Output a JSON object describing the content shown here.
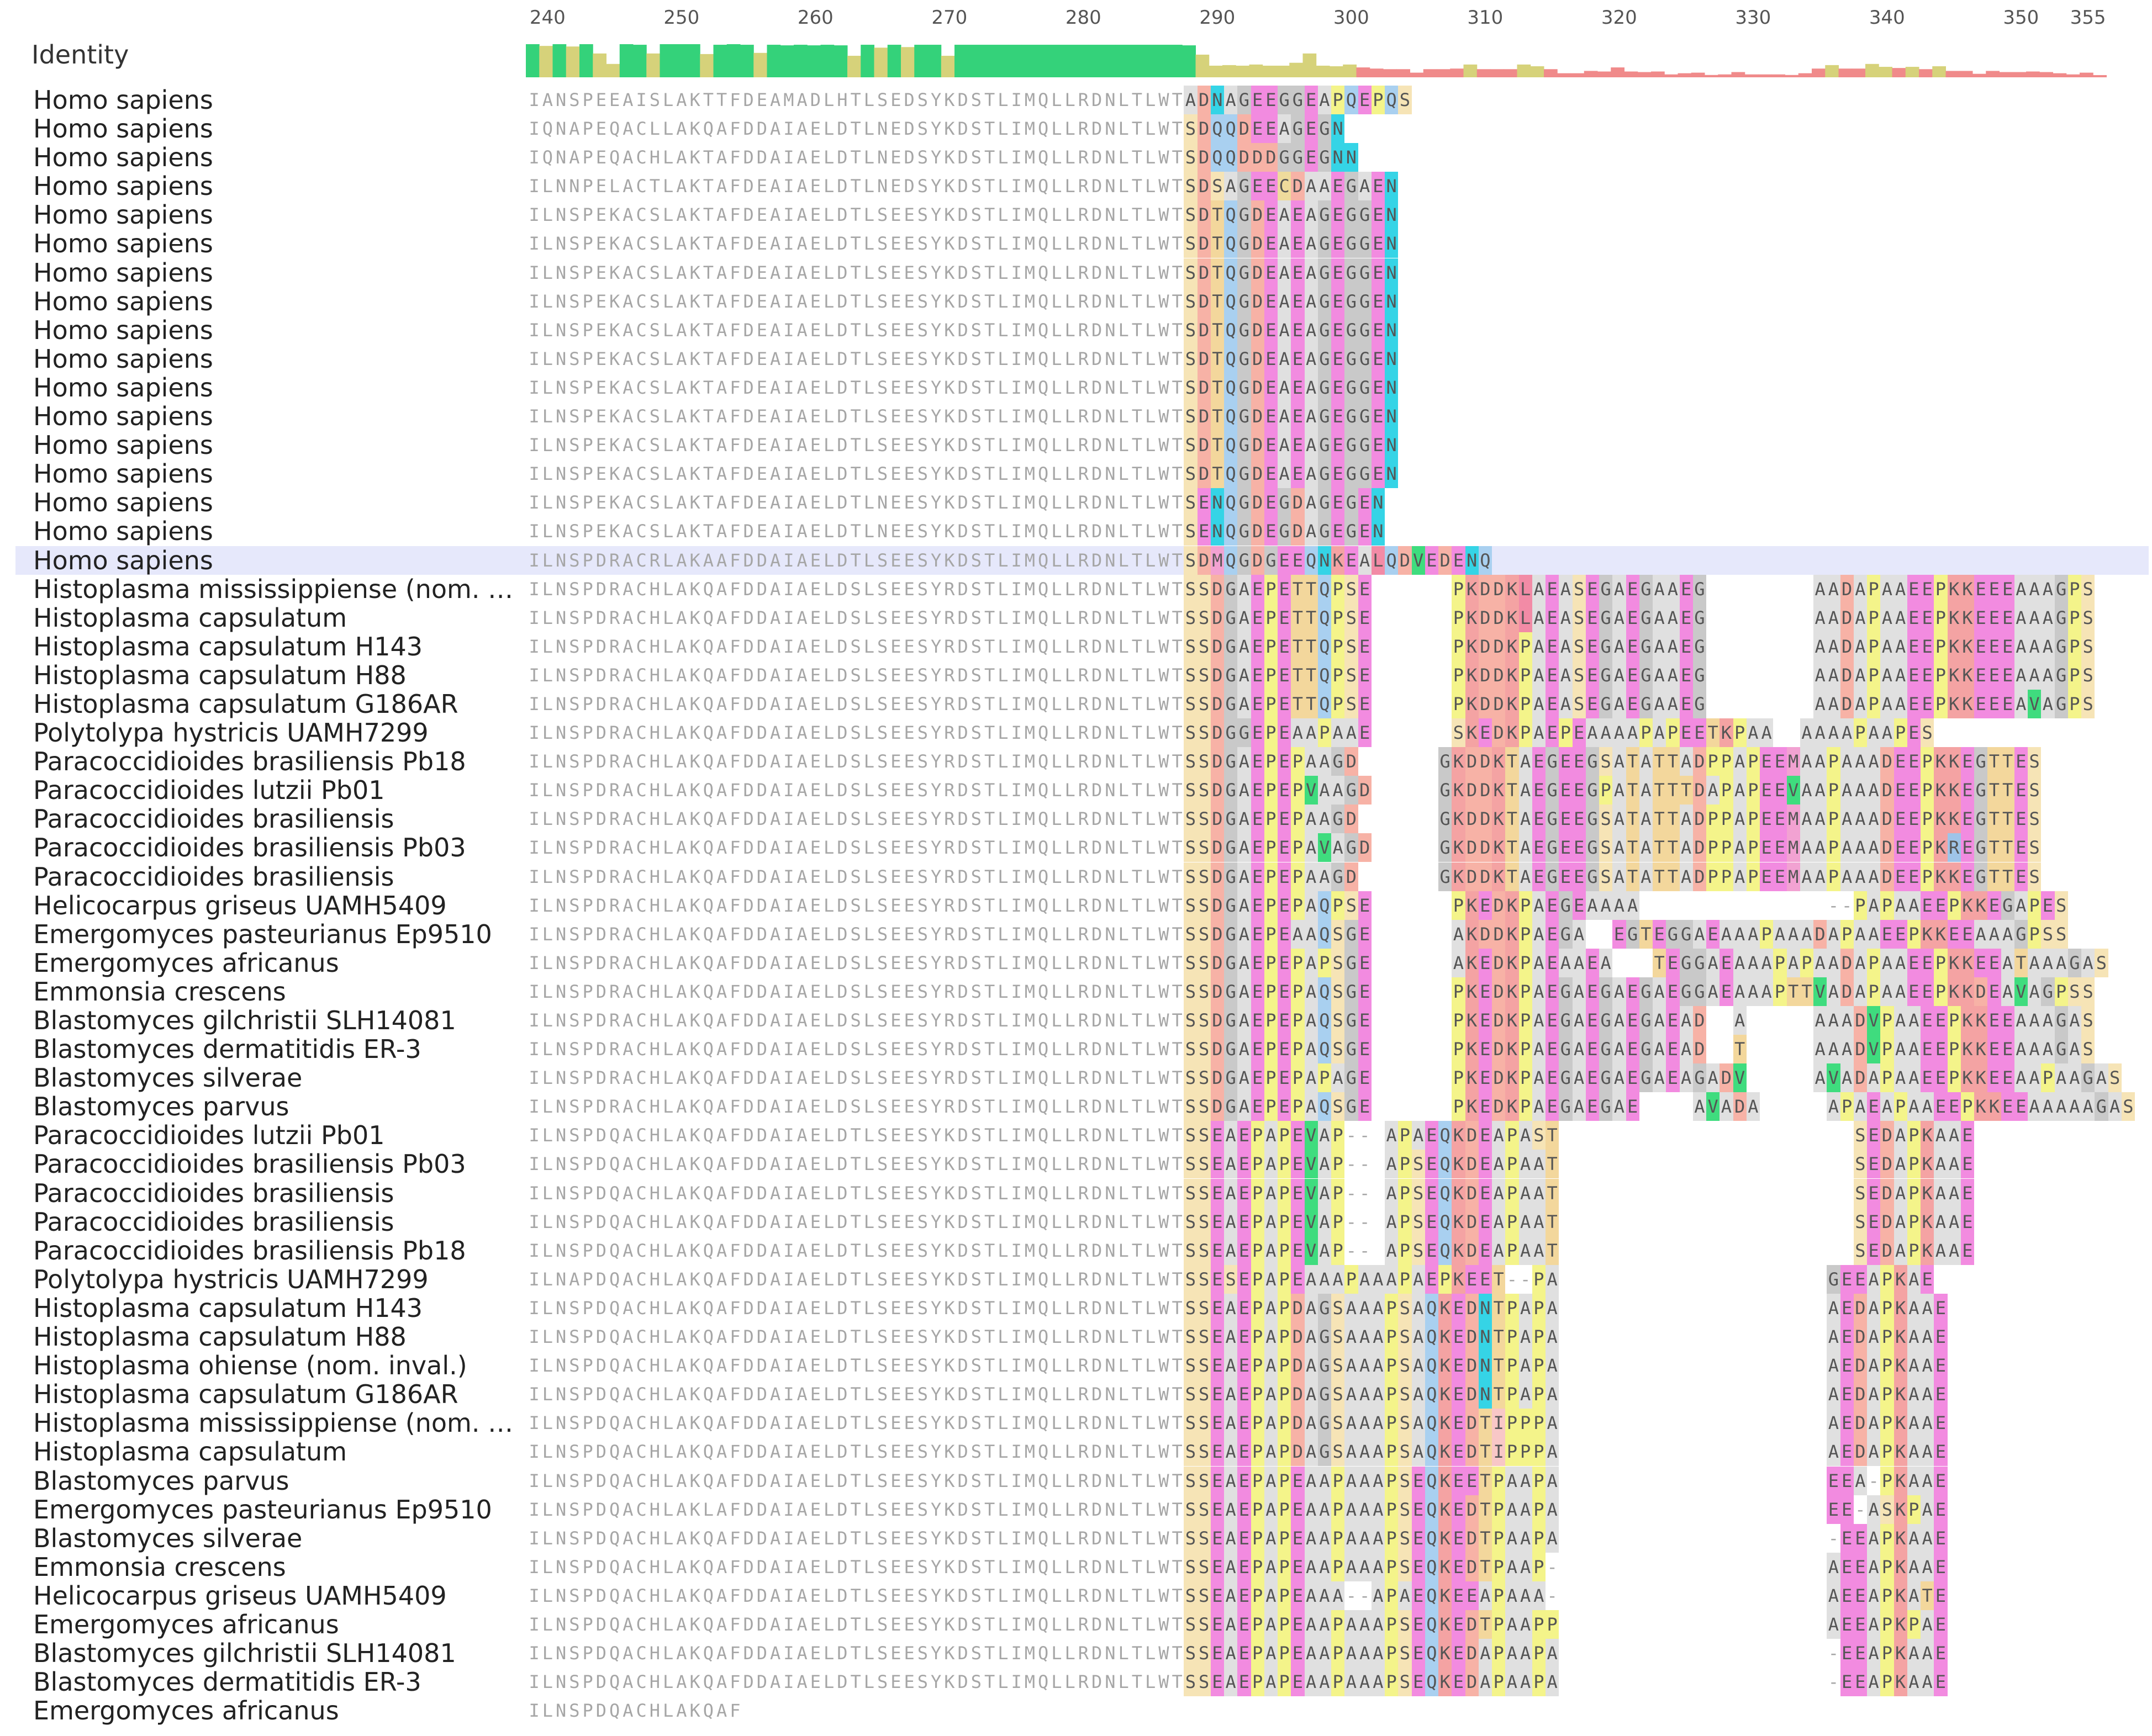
{
  "ruler": {
    "ticks": [
      "240",
      "250",
      "260",
      "270",
      "280",
      "290",
      "300",
      "310",
      "320",
      "330",
      "340",
      "350",
      "355"
    ]
  },
  "identity": {
    "label": "Identity",
    "colors": {
      "high": "#34d27a",
      "mid": "#d6d27a",
      "low": "#f08a8a"
    }
  },
  "selected_row_index": 16,
  "sequences": [
    {
      "name": "Homo sapiens",
      "seq": "IANSPEEAISLAKTTFDEAMADLHTLSEDSYKDSTLIMQLLRDNLTLWTADNAGEEGGEAPQEPQS"
    },
    {
      "name": "Homo sapiens",
      "seq": "IQNAPEQACLLAKQAFDDAIAELDTLNEDSYKDSTLIMQLLRDNLTLWTSDQQDEEAGEGN"
    },
    {
      "name": "Homo sapiens",
      "seq": "IQNAPEQACHLAKTAFDDAIAELDTLNEDSYKDSTLIMQLLRDNLTLWTSDQQDDDGGEGNN"
    },
    {
      "name": "Homo sapiens",
      "seq": "ILNNPELACTLAKTAFDEAIAELDTLNEDSYKDSTLIMQLLRDNLTLWTSDSAGEECDAAEGAEN"
    },
    {
      "name": "Homo sapiens",
      "seq": "ILNSPEKACSLAKTAFDEAIAELDTLSEESYKDSTLIMQLLRDNLTLWTSDTQGDEAEAGEGGEN"
    },
    {
      "name": "Homo sapiens",
      "seq": "ILNSPEKACSLAKTAFDEAIAELDTLSEESYKDSTLIMQLLRDNLTLWTSDTQGDEAEAGEGGEN"
    },
    {
      "name": "Homo sapiens",
      "seq": "ILNSPEKACSLAKTAFDEAIAELDTLSEESYKDSTLIMQLLRDNLTLWTSDTQGDEAEAGEGGEN"
    },
    {
      "name": "Homo sapiens",
      "seq": "ILNSPEKACSLAKTAFDEAIAELDTLSEESYKDSTLIMQLLRDNLTLWTSDTQGDEAEAGEGGEN"
    },
    {
      "name": "Homo sapiens",
      "seq": "ILNSPEKACSLAKTAFDEAIAELDTLSEESYKDSTLIMQLLRDNLTLWTSDTQGDEAEAGEGGEN"
    },
    {
      "name": "Homo sapiens",
      "seq": "ILNSPEKACSLAKTAFDEAIAELDTLSEESYKDSTLIMQLLRDNLTLWTSDTQGDEAEAGEGGEN"
    },
    {
      "name": "Homo sapiens",
      "seq": "ILNSPEKACSLAKTAFDEAIAELDTLSEESYKDSTLIMQLLRDNLTLWTSDTQGDEAEAGEGGEN"
    },
    {
      "name": "Homo sapiens",
      "seq": "ILNSPEKACSLAKTAFDEAIAELDTLSEESYKDSTLIMQLLRDNLTLWTSDTQGDEAEAGEGGEN"
    },
    {
      "name": "Homo sapiens",
      "seq": "ILNSPEKACSLAKTAFDEAIAELDTLSEESYKDSTLIMQLLRDNLTLWTSDTQGDEAEAGEGGEN"
    },
    {
      "name": "Homo sapiens",
      "seq": "ILNSPEKACSLAKTAFDEAIAELDTLSEESYKDSTLIMQLLRDNLTLWTSDTQGDEAEAGEGGEN"
    },
    {
      "name": "Homo sapiens",
      "seq": "ILNSPEKACSLAKTAFDEAIAELDTLNEESYKDSTLIMQLLRDNLTLWTSENQGDEGDAGEGEN"
    },
    {
      "name": "Homo sapiens",
      "seq": "ILNSPEKACSLAKTAFDEAIAELDTLNEESYKDSTLIMQLLRDNLTLWTSENQGDEGDAGEGEN"
    },
    {
      "name": "Homo sapiens",
      "seq": "ILNSPDRACRLAKAAFDDAIAELDTLSEESYKDSTLIMQLLRDNLTLWTSDMQGDGEEQNKEALQDVEDENQ"
    },
    {
      "name": "Histoplasma mississippiense (nom. …",
      "seq": "ILNSPDRACHLAKQAFDDAIAELDSLSEESYRDSTLIMQLLRDNLTLWTSSDGAEPETTQPSE      PKDDKLAEASEGAEGAAEG        AADAPAAEEPKKEEEAAAGPS"
    },
    {
      "name": "Histoplasma capsulatum",
      "seq": "ILNSPDRACHLAKQAFDDAIAELDSLSEESYRDSTLIMQLLRDNLTLWTSSDGAEPETTQPSE      PKDDKLAEASEGAEGAAEG        AADAPAAEEPKKEEEAAAGPS"
    },
    {
      "name": "Histoplasma capsulatum H143",
      "seq": "ILNSPDRACHLAKQAFDDAIAELDSLSEESYRDSTLIMQLLRDNLTLWTSSDGAEPETTQPSE      PKDDKPAEASEGAEGAAEG        AADAPAAEEPKKEEEAAAGPS"
    },
    {
      "name": "Histoplasma capsulatum H88",
      "seq": "ILNSPDRACHLAKQAFDDAIAELDSLSEESYRDSTLIMQLLRDNLTLWTSSDGAEPETTQPSE      PKDDKPAEASEGAEGAAEG        AADAPAAEEPKKEEEAAAGPS"
    },
    {
      "name": "Histoplasma capsulatum G186AR",
      "seq": "ILNSPDRACHLAKQAFDDAIAELDSLSEESYRDSTLIMQLLRDNLTLWTSSDGAEPETTQPSE      PKDDKPAEASEGAEGAAEG        AADAPAAEEPKKEEEAVAGPS"
    },
    {
      "name": "Polytolypa hystricis UAMH7299",
      "seq": "ILNSPDRACHLAKQAFDDAIAELDSLSEESYRDSTLIMQLLRDNLTLWTSSDGGEPEAAPAAE      SKEDKPAEPEAAAAPAPEETKPAA  AAAAPAAPES"
    },
    {
      "name": "Paracoccidioides brasiliensis Pb18",
      "seq": "ILNSPDRACHLAKQAFDDAIAELDSLSEESYRDSTLIMQLLRDNLTLWTSSDGAEPEPAAGD      GKDDKTAEGEEGSATATTADPPAPEEMAAPAAADEEPKKEGTTES"
    },
    {
      "name": "Paracoccidioides lutzii Pb01",
      "seq": "ILNSPDRACHLAKQAFDDAIAELDSLSEESYRDSTLIMQLLRDNLTLWTSSDGAEPEPVAAGD     GKDDKTAEGEEGPATATTTDAPAPEEVAAPAAADEEPKKEGTTES"
    },
    {
      "name": "Paracoccidioides brasiliensis",
      "seq": "ILNSPDRACHLAKQAFDDAIAELDSLSEESYRDSTLIMQLLRDNLTLWTSSDGAEPEPAAGD      GKDDKTAEGEEGSATATTADPPAPEEMAAPAAADEEPKKEGTTES"
    },
    {
      "name": "Paracoccidioides brasiliensis Pb03",
      "seq": "ILNSPDRACHLAKQAFDDAIAELDSLSEESYRDSTLIMQLLRDNLTLWTSSDGAEPEPAVAGD     GKDDKTAEGEEGSATATTADPPAPEEMAAPAAADEEPKREGTTES"
    },
    {
      "name": "Paracoccidioides brasiliensis",
      "seq": "ILNSPDRACHLAKQAFDDAIAELDSLSEESYRDSTLIMQLLRDNLTLWTSSDGAEPEPAAGD      GKDDKTAEGEEGSATATTADPPAPEEMAAPAAADEEPKKEGTTES"
    },
    {
      "name": "Helicocarpus griseus UAMH5409",
      "seq": "ILNSPDRACHLAKQAFDDAIAELDSLSEESYRDSTLIMQLLRDNLTLWTSSDGAEPEPAQPSE      PKEDKPAEGEAAAA              --PAPAAEEPKKEGAPES"
    },
    {
      "name": "Emergomyces pasteurianus Ep9510",
      "seq": "ILNSPDRACHLAKQAFDDAIAELDSLSEESYRDSTLIMQLLRDNLTLWTSSDGAEPEAAQSGE      AKDDKPAEGA  EGTEGGAEAAAPAAADAPAAEEPKKEEAAAGPSS"
    },
    {
      "name": "Emergomyces africanus",
      "seq": "ILNSPDRACHLAKQAFDDAIAELDSLSEESYRDSTLIMQLLRDNLTLWTSSDGAEPEPAPSGE      AKEDKPAEAAEA   TEGGAEAAAPAPAADAPAAEEPKKEEATAAAGAS"
    },
    {
      "name": "Emmonsia crescens",
      "seq": "ILNSPDRACHLAKQAFDDAIAELDSLSEESYRDSTLIMQLLRDNLTLWTSSDGAEPEPAQSGE      PKEDKPAEGAEGAEGAEGGAEAAAPTTVADAPAAEEPKKDEAVAGPSS"
    },
    {
      "name": "Blastomyces gilchristii SLH14081",
      "seq": "ILNSPDRACHLAKQAFDDAIAELDSLSEESYRDSTLIMQLLRDNLTLWTSSDGAEPEPAQSGE      PKEDKPAEGAEGAEGAEAD  A     AAADVPAAEEPKKEEAAAGAS"
    },
    {
      "name": "Blastomyces dermatitidis ER-3",
      "seq": "ILNSPDRACHLAKQAFDDAIAELDSLSEESYRDSTLIMQLLRDNLTLWTSSDGAEPEPAQSGE      PKEDKPAEGAEGAEGAEAD  T     AAADVPAAEEPKKEEAAAGAS"
    },
    {
      "name": "Blastomyces silverae",
      "seq": "ILNSPDRACHLAKQAFDDAIAELDSLSEESYRDSTLIMQLLRDNLTLWTSSDGAEPEPAPAGE      PKEDKPAEGAEGAEGAEAGADV     AVADAPAAEEPKKEEAAPAAGAS"
    },
    {
      "name": "Blastomyces parvus",
      "seq": "ILNSPDRACHLAKQAFDDAIAELDSLSEESYRDSTLIMQLLRDNLTLWTSSDGAEPEPAQSGE      PKEDKPAEGAEGAE    AVADA     APAEAPAAEEPKKEEAAAAAGAS"
    },
    {
      "name": "Paracoccidioides lutzii Pb01",
      "seq": "ILNSPDQACHLAKQAFDDAIAELDTLSEESYKDSTLIMQLLRDNLTLWTSSEAEPAPEVAP-- APAEQKDEAPAST                      SEDAPKAAE"
    },
    {
      "name": "Paracoccidioides brasiliensis Pb03",
      "seq": "ILNSPDQACHLAKQAFDDAIAELDTLSEESYKDSTLIMQLLRDNLTLWTSSEAEPAPEVAP-- APSEQKDEAPAAT                      SEDAPKAAE"
    },
    {
      "name": "Paracoccidioides brasiliensis",
      "seq": "ILNSPDQACHLAKQAFDDAIAELDTLSEESYKDSTLIMQLLRDNLTLWTSSEAEPAPEVAP-- APSEQKDEAPAAT                      SEDAPKAAE"
    },
    {
      "name": "Paracoccidioides brasiliensis",
      "seq": "ILNSPDQACHLAKQAFDDAIAELDTLSEESYKDSTLIMQLLRDNLTLWTSSEAEPAPEVAP-- APSEQKDEAPAAT                      SEDAPKAAE"
    },
    {
      "name": "Paracoccidioides brasiliensis Pb18",
      "seq": "ILNSPDQACHLAKQAFDDAIAELDTLSEESYKDSTLIMQLLRDNLTLWTSSEAEPAPEVAP-- APSEQKDEAPAAT                      SEDAPKAAE"
    },
    {
      "name": "Polytolypa hystricis UAMH7299",
      "seq": "ILNAPDQACHLAKQAFDDAIAELDTLSEESYKDSTLIMQLLRDNLTLWTSSESEPAPEAAAPAAAPAEPKEET--PA                    GEEAPKAE"
    },
    {
      "name": "Histoplasma capsulatum H143",
      "seq": "ILNSPDQACHLAKQAFDDAIAELDTLSEESYKDSTLIMQLLRDNLTLWTSSEAEPAPDAGSAAAPSAQKEDNTPAPA                    AEDAPKAAE"
    },
    {
      "name": "Histoplasma capsulatum H88",
      "seq": "ILNSPDQACHLAKQAFDDAIAELDTLSEESYKDSTLIMQLLRDNLTLWTSSEAEPAPDAGSAAAPSAQKEDNTPAPA                    AEDAPKAAE"
    },
    {
      "name": "Histoplasma ohiense (nom. inval.)",
      "seq": "ILNSPDQACHLAKQAFDDAIAELDTLSEESYKDSTLIMQLLRDNLTLWTSSEAEPAPDAGSAAAPSAQKEDNTPAPA                    AEDAPKAAE"
    },
    {
      "name": "Histoplasma capsulatum G186AR",
      "seq": "ILNSPDQACHLAKQAFDDAIAELDTLSEESYKDSTLIMQLLRDNLTLWTSSEAEPAPDAGSAAAPSAQKEDNTPAPA                    AEDAPKAAE"
    },
    {
      "name": "Histoplasma mississippiense (nom. …",
      "seq": "ILNSPDQACHLAKQAFDDAIAELDTLSEESYKDSTLIMQLLRDNLTLWTSSEAEPAPDAGSAAAPSAQKEDTIPPPA                    AEDAPKAAE"
    },
    {
      "name": "Histoplasma capsulatum",
      "seq": "ILNSPDQACHLAKQAFDDAIAELDTLSEESYKDSTLIMQLLRDNLTLWTSSEAEPAPDAGSAAAPSAQKEDTIPPPA                    AEDAPKAAE"
    },
    {
      "name": "Blastomyces parvus",
      "seq": "ILNSPDQACHLAKQAFDDAIAELDTLSEESYKDSTLIMQLLRDNLTLWTSSEAEPAPEAAPAAAPSEQKEETPAAPA                    EEA-PKAAE"
    },
    {
      "name": "Emergomyces pasteurianus Ep9510",
      "seq": "ILNSPDQACHLAKLAFDDAIAELDTLSEESYKDSTLIMQLLRDNLTLWTSSEAEPAPEAAPAAAPSEQKEDTPAAPA                    EE-ASKPAE"
    },
    {
      "name": "Blastomyces silverae",
      "seq": "ILNSPDQACHLAKQAFDDAIAELDTLSEESYKDSTLIMQLLRDNLTLWTSSEAEPAPEAAPAAAPSEQKEDTPAAPA                    -EEAPKAAE"
    },
    {
      "name": "Emmonsia crescens",
      "seq": "ILNSPDQACHLAKQAFDDAIAELDTLSEESYKDSTLIMQLLRDNLTLWTSSEAEPAPEAAPAAAPSEQKEDTPAAP-                    AEEAPKAAE"
    },
    {
      "name": "Helicocarpus griseus UAMH5409",
      "seq": "ILNSPDQACHLAKQAFDDAIAELDTLSEESYKDSTLIMQLLRDNLTLWTSSEAEPAPEAAA--APAEQKEEAPAAA-                    AEEAPKATE"
    },
    {
      "name": "Emergomyces africanus",
      "seq": "ILNSPDQACHLAKQAFDDAIAELDTLSEESYKDSTLIMQLLRDNLTLWTSSEAEPAPEAAPAAAPSEQKEDTPAAPP                    AEEAPKPAE"
    },
    {
      "name": "Blastomyces gilchristii SLH14081",
      "seq": "ILNSPDQACHLAKQAFDDAIAELDTLSEESYKDSTLIMQLLRDNLTLWTSSEAEPAPEAAPAAAPSEQKEDAPAAPA                    -EEAPKAAE"
    },
    {
      "name": "Blastomyces dermatitidis ER-3",
      "seq": "ILNSPDQACHLAKQAFDDAIAELDTLSEESYKDSTLIMQLLRDNLTLWTSSEAEPAPEAAPAAAPSEQKEDAPAAPA                    -EEAPKAAE"
    },
    {
      "name": "Emergomyces africanus",
      "seq": "ILNSPDQACHLAKQAF"
    }
  ],
  "palette": {
    "E": "#f28be0",
    "D": "#f7b2a6",
    "K": "#f4a3a3",
    "R": "#9fc4e8",
    "N": "#35d4e6",
    "Q": "#a9d0f0",
    "T": "#f3d79c",
    "S": "#f6e4b6",
    "G": "#c9c9c9",
    "A": "#e0e0e0",
    "P": "#f4f48a",
    "V": "#3fdc7e",
    "L": "#f28ba6",
    "I": "#f8c7c7",
    "M": "#f2a2d2",
    "H": "#f6e0a0",
    "C": "#eedb9c"
  }
}
